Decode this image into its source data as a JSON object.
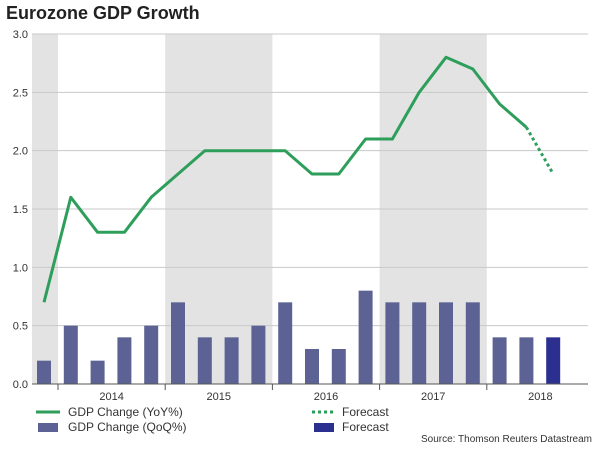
{
  "chart_data": {
    "type": "bar+line",
    "title": "Eurozone GDP Growth",
    "ylim": [
      0,
      3.0
    ],
    "yticks": [
      0.0,
      0.5,
      1.0,
      1.5,
      2.0,
      2.5,
      3.0
    ],
    "ytick_labels": [
      "0.0",
      "0.5",
      "1.0",
      "1.5",
      "2.0",
      "2.5",
      "3.0"
    ],
    "year_labels": [
      "2014",
      "2015",
      "2016",
      "2017",
      "2018"
    ],
    "year_shading": [
      true,
      false,
      true,
      false,
      true,
      false
    ],
    "x_quarters": [
      "2013Q4",
      "2014Q1",
      "2014Q2",
      "2014Q3",
      "2014Q4",
      "2015Q1",
      "2015Q2",
      "2015Q3",
      "2015Q4",
      "2016Q1",
      "2016Q2",
      "2016Q3",
      "2016Q4",
      "2017Q1",
      "2017Q2",
      "2017Q3",
      "2017Q4",
      "2018Q1",
      "2018Q2",
      "2018Q3"
    ],
    "series": [
      {
        "name": "GDP Change (YoY%)",
        "kind": "line",
        "color": "#2e9e5b",
        "values": [
          0.7,
          1.6,
          1.3,
          1.3,
          1.6,
          1.8,
          2.0,
          2.0,
          2.0,
          2.0,
          1.8,
          1.8,
          2.1,
          2.1,
          2.5,
          2.8,
          2.7,
          2.4,
          2.2,
          null
        ]
      },
      {
        "name": "Forecast",
        "kind": "line-dotted",
        "color": "#2e9e5b",
        "values": [
          null,
          null,
          null,
          null,
          null,
          null,
          null,
          null,
          null,
          null,
          null,
          null,
          null,
          null,
          null,
          null,
          null,
          null,
          2.2,
          1.8
        ]
      },
      {
        "name": "GDP Change (QoQ%)",
        "kind": "bar",
        "color": "#5c6394",
        "values": [
          0.2,
          0.5,
          0.2,
          0.4,
          0.5,
          0.7,
          0.4,
          0.4,
          0.5,
          0.7,
          0.3,
          0.3,
          0.8,
          0.7,
          0.7,
          0.7,
          0.7,
          0.4,
          0.4,
          null
        ]
      },
      {
        "name": "Forecast",
        "kind": "bar",
        "color": "#2b2f8f",
        "values": [
          null,
          null,
          null,
          null,
          null,
          null,
          null,
          null,
          null,
          null,
          null,
          null,
          null,
          null,
          null,
          null,
          null,
          null,
          null,
          0.4
        ]
      }
    ],
    "source": "Source: Thomson Reuters Datastream"
  }
}
